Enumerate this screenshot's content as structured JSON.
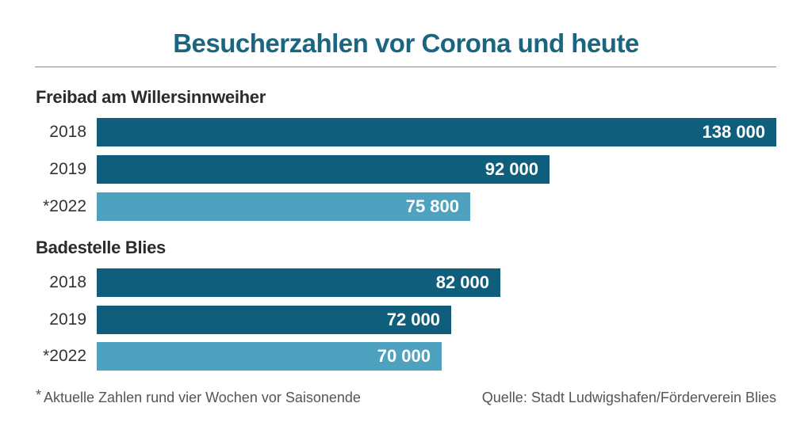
{
  "chart_data": {
    "type": "bar",
    "orientation": "horizontal",
    "title": "Besucherzahlen vor Corona und heute",
    "xlim": [
      0,
      138000
    ],
    "groups": [
      {
        "name": "Freibad am Willersinnweiher",
        "bars": [
          {
            "label": "2018",
            "value": 138000,
            "value_label": "138 000",
            "color": "#0f5e7c"
          },
          {
            "label": "2019",
            "value": 92000,
            "value_label": "92 000",
            "color": "#0f5e7c"
          },
          {
            "label": "*2022",
            "value": 75800,
            "value_label": "75 800",
            "color": "#4ea1bf"
          }
        ]
      },
      {
        "name": "Badestelle Blies",
        "bars": [
          {
            "label": "2018",
            "value": 82000,
            "value_label": "82 000",
            "color": "#0f5e7c"
          },
          {
            "label": "2019",
            "value": 72000,
            "value_label": "72 000",
            "color": "#0f5e7c"
          },
          {
            "label": "*2022",
            "value": 70000,
            "value_label": "70 000",
            "color": "#4ea1bf"
          }
        ]
      }
    ]
  },
  "footnote": {
    "star": "*",
    "text": "Aktuelle Zahlen rund vier Wochen vor Saisonende"
  },
  "source": "Quelle: Stadt Ludwigshafen/Förderverein Blies"
}
